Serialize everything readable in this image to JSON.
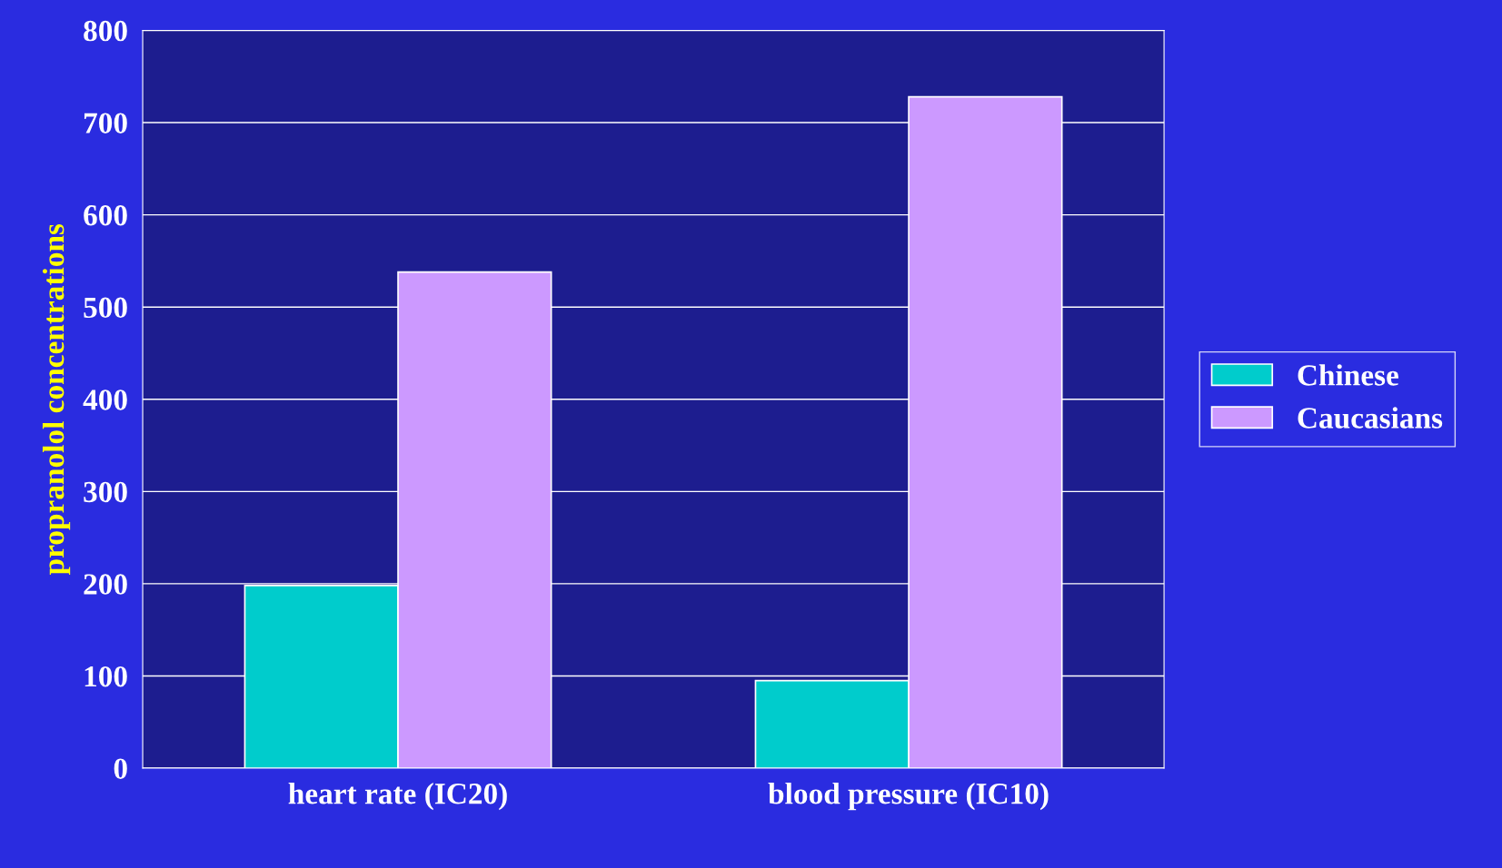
{
  "chart_data": {
    "type": "bar",
    "ylabel": "propranolol concentrations",
    "categories": [
      "heart rate (IC20)",
      "blood pressure (IC10)"
    ],
    "series": [
      {
        "name": "Chinese",
        "color": "#00cccc",
        "values": [
          198,
          95
        ]
      },
      {
        "name": "Caucasians",
        "color": "#cc99ff",
        "values": [
          538,
          728
        ]
      }
    ],
    "ylim": [
      0,
      800
    ],
    "yticks": [
      0,
      100,
      200,
      300,
      400,
      500,
      600,
      700,
      800
    ],
    "grid": "y",
    "legend": "right"
  }
}
